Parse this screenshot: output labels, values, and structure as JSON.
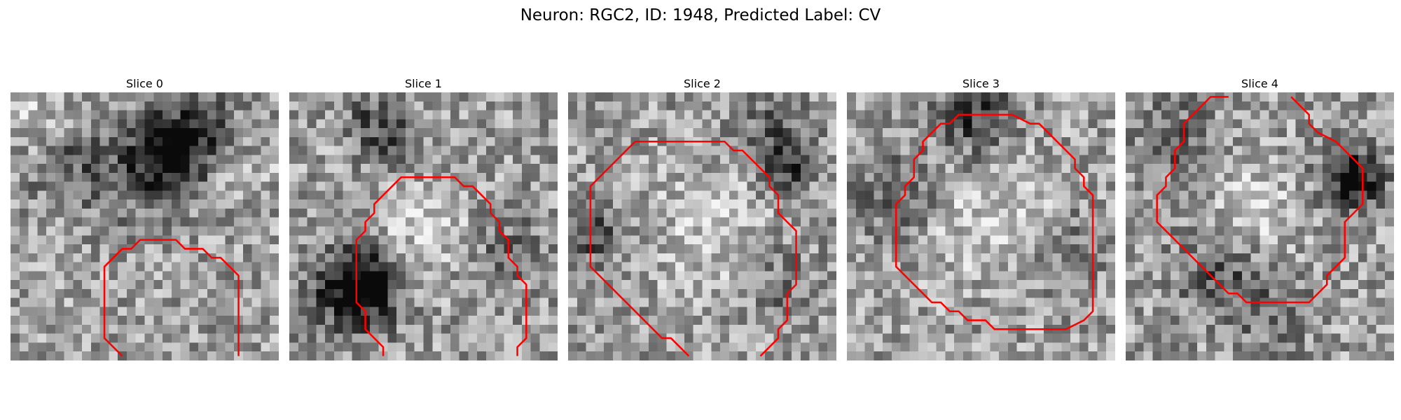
{
  "figure": {
    "title": "Neuron: RGC2, ID: 1948, Predicted Label: CV",
    "image_kind": "grayscale microscopy slices with red contour overlay",
    "contour_color": "#ff0000",
    "panels": [
      {
        "title": "Slice 0",
        "seed": 11,
        "blobs": [
          [
            7,
            6,
            -0.45,
            3.5
          ],
          [
            6,
            17,
            -0.9,
            2.8
          ],
          [
            4,
            21,
            -0.55,
            3
          ],
          [
            9,
            15,
            -0.35,
            4
          ],
          [
            3,
            3,
            0.35,
            3
          ],
          [
            8,
            25,
            0.2,
            3
          ]
        ]
      },
      {
        "title": "Slice 1",
        "seed": 23,
        "blobs": [
          [
            21,
            8,
            -0.9,
            2.6
          ],
          [
            22,
            6,
            -0.6,
            3.5
          ],
          [
            5,
            11,
            -0.5,
            2.5
          ],
          [
            14,
            14,
            0.3,
            4
          ],
          [
            17,
            24,
            -0.3,
            3
          ],
          [
            2,
            8,
            -0.3,
            2
          ]
        ]
      },
      {
        "title": "Slice 2",
        "seed": 37,
        "blobs": [
          [
            15,
            2,
            -0.6,
            2.5
          ],
          [
            8,
            24,
            -0.6,
            2
          ],
          [
            3,
            23,
            -0.4,
            3
          ],
          [
            15,
            15,
            0.25,
            5
          ],
          [
            21,
            23,
            -0.3,
            3
          ]
        ]
      },
      {
        "title": "Slice 3",
        "seed": 51,
        "blobs": [
          [
            2,
            14,
            -0.7,
            3
          ],
          [
            11,
            5,
            -0.45,
            3
          ],
          [
            13,
            16,
            0.35,
            5
          ],
          [
            17,
            24,
            -0.35,
            3
          ],
          [
            10,
            15,
            -0.2,
            2.5
          ]
        ]
      },
      {
        "title": "Slice 4",
        "seed": 67,
        "blobs": [
          [
            9,
            25,
            -0.9,
            2.5
          ],
          [
            5,
            5,
            -0.45,
            3
          ],
          [
            20,
            10,
            -0.45,
            3.5
          ],
          [
            13,
            14,
            0.35,
            3.5
          ],
          [
            24,
            16,
            -0.3,
            3
          ]
        ]
      }
    ]
  }
}
